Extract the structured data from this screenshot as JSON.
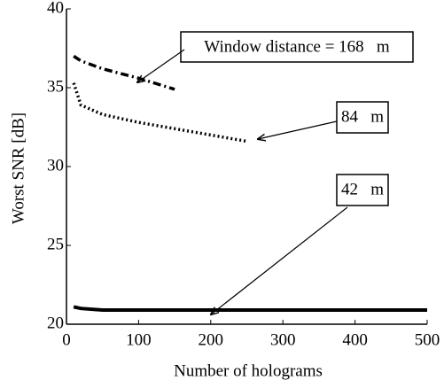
{
  "chart_data": {
    "type": "line",
    "x_label": "Number of holograms",
    "y_label": "Worst SNR [dB]",
    "xlim": [
      0,
      500
    ],
    "xticks": [
      0,
      100,
      200,
      300,
      400,
      500
    ],
    "ylim": [
      20,
      40
    ],
    "yticks": [
      20,
      25,
      30,
      35,
      40
    ],
    "series": [
      {
        "name": "Window distance = 168   m",
        "color": "#000000",
        "dash": "dashdot",
        "x": [
          10,
          20,
          50,
          100,
          150
        ],
        "values": [
          37.0,
          36.7,
          36.2,
          35.6,
          34.9
        ]
      },
      {
        "name": "84   m",
        "color": "#000000",
        "dash": "dotted",
        "x": [
          10,
          20,
          50,
          100,
          150,
          200,
          250
        ],
        "values": [
          35.3,
          33.9,
          33.3,
          32.8,
          32.4,
          32.0,
          31.6
        ]
      },
      {
        "name": "42   m",
        "color": "#000000",
        "dash": "solid",
        "x": [
          10,
          20,
          50,
          100,
          200,
          300,
          400,
          500
        ],
        "values": [
          21.1,
          21.0,
          20.9,
          20.9,
          20.9,
          20.9,
          20.9,
          20.9
        ]
      }
    ]
  }
}
